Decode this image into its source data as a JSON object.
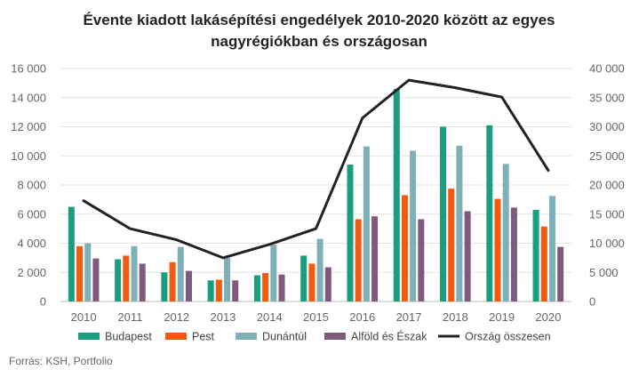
{
  "chart_data": {
    "type": "bar",
    "title_lines": [
      "Évente kiadott lakásépítési engedélyek 2010-2020 között az egyes",
      "nagyrégiókban és országosan"
    ],
    "categories": [
      "2010",
      "2011",
      "2012",
      "2013",
      "2014",
      "2015",
      "2016",
      "2017",
      "2018",
      "2019",
      "2020"
    ],
    "series": [
      {
        "name": "Budapest",
        "type": "bar",
        "axis": "left",
        "color": "#1a9e7e",
        "values": [
          6500,
          2900,
          2000,
          1450,
          1800,
          3150,
          9400,
          14600,
          12000,
          12100,
          6300
        ]
      },
      {
        "name": "Pest",
        "type": "bar",
        "axis": "left",
        "color": "#f25a0d",
        "values": [
          3800,
          3150,
          2700,
          1500,
          1950,
          2600,
          5650,
          7300,
          7750,
          7050,
          5150
        ]
      },
      {
        "name": "Dunántúl",
        "type": "bar",
        "axis": "left",
        "color": "#7fb0b8",
        "values": [
          4000,
          3800,
          3750,
          3000,
          3900,
          4300,
          10650,
          10350,
          10700,
          9450,
          7250
        ]
      },
      {
        "name": "Alföld és Észak",
        "type": "bar",
        "axis": "left",
        "color": "#7e5a7e",
        "values": [
          2950,
          2600,
          2100,
          1450,
          1850,
          2350,
          5850,
          5650,
          6200,
          6450,
          3750
        ]
      },
      {
        "name": "Ország összesen",
        "type": "line",
        "axis": "right",
        "color": "#222222",
        "values": [
          17300,
          12500,
          10600,
          7500,
          9800,
          12500,
          31500,
          38000,
          36700,
          35100,
          22500
        ]
      }
    ],
    "y_left": {
      "min": 0,
      "max": 16000,
      "ticks": [
        0,
        2000,
        4000,
        6000,
        8000,
        10000,
        12000,
        14000,
        16000
      ],
      "tick_labels": [
        "0",
        "2 000",
        "4 000",
        "6 000",
        "8 000",
        "10 000",
        "12 000",
        "14 000",
        "16 000"
      ]
    },
    "y_right": {
      "min": 0,
      "max": 40000,
      "ticks": [
        0,
        5000,
        10000,
        15000,
        20000,
        25000,
        30000,
        35000,
        40000
      ],
      "tick_labels": [
        "0",
        "5 000",
        "10 000",
        "15 000",
        "20 000",
        "25 000",
        "30 000",
        "35 000",
        "40 000"
      ]
    },
    "grid": true,
    "legend_position": "bottom",
    "source": "Forrás: KSH, Portfolio"
  }
}
